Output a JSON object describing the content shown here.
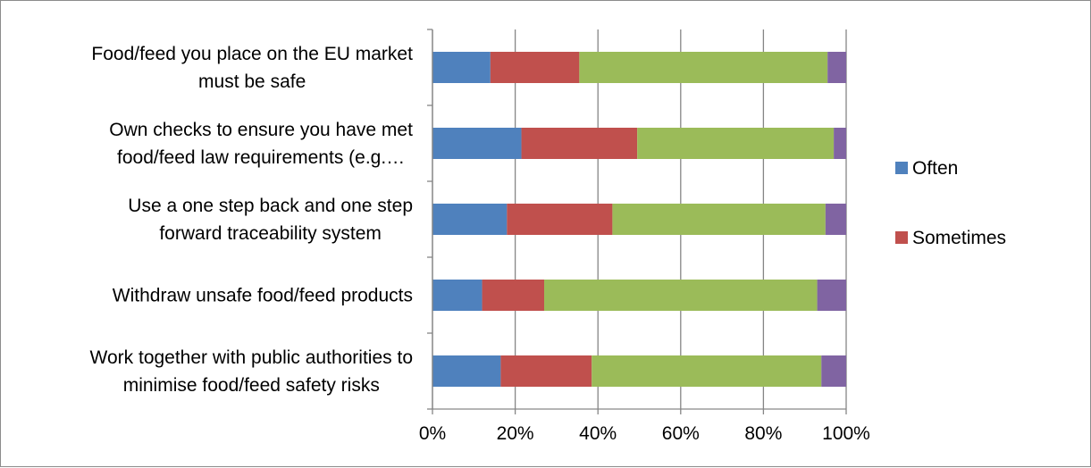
{
  "chart_data": {
    "type": "bar",
    "orientation": "horizontal",
    "stacked": "percent",
    "categories": [
      [
        "Food/feed you place on the EU market",
        "must be safe"
      ],
      [
        "Own checks to ensure you have met",
        "food/feed law requirements (e.g.…"
      ],
      [
        "Use a one step back and one step",
        "forward traceability system"
      ],
      [
        "Withdraw unsafe food/feed products"
      ],
      [
        "Work together with public authorities to",
        "minimise food/feed safety risks"
      ]
    ],
    "series": [
      {
        "name": "Often",
        "color": "#4f81bd",
        "values": [
          14,
          21.5,
          18,
          12,
          16.5
        ]
      },
      {
        "name": "Sometimes",
        "color": "#c0504d",
        "values": [
          21.5,
          28,
          25.5,
          15,
          22
        ]
      },
      {
        "color": "#9bbb59",
        "values": [
          60,
          47.5,
          51.5,
          66,
          55.5
        ]
      },
      {
        "color": "#8064a2",
        "values": [
          4.5,
          3,
          5,
          7,
          6
        ]
      }
    ],
    "xlim": [
      0,
      100
    ],
    "xticks": [
      "0%",
      "20%",
      "40%",
      "60%",
      "80%",
      "100%"
    ],
    "grid": "vertical",
    "legend": "right",
    "legend_entries": [
      "Often",
      "Sometimes"
    ],
    "title": "",
    "xlabel": "",
    "ylabel": ""
  }
}
